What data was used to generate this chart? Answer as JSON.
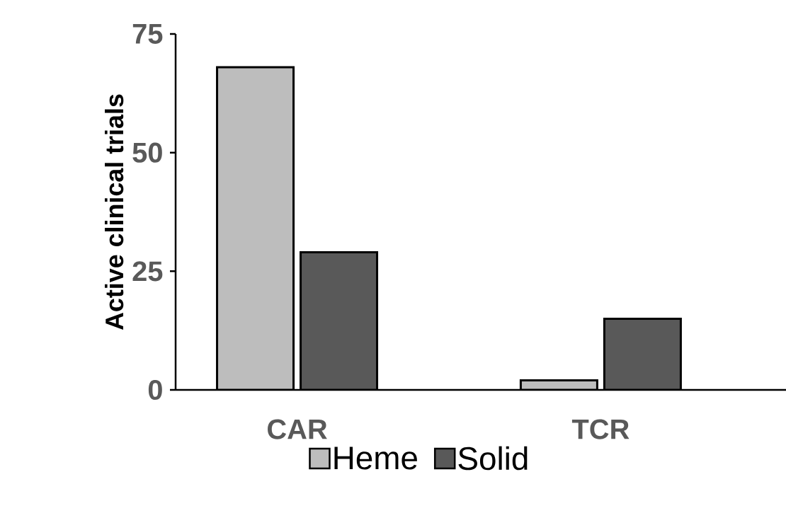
{
  "chart_data": {
    "type": "bar",
    "ylabel": "Active clinical trials",
    "categories": [
      "CAR",
      "TCR"
    ],
    "series": [
      {
        "name": "Heme",
        "color": "#bdbdbd",
        "values": [
          68,
          2
        ]
      },
      {
        "name": "Solid",
        "color": "#595959",
        "values": [
          29,
          15
        ]
      }
    ],
    "ylim": [
      0,
      75
    ],
    "yticks": [
      0,
      25,
      50,
      75
    ],
    "legend": "bottom"
  }
}
